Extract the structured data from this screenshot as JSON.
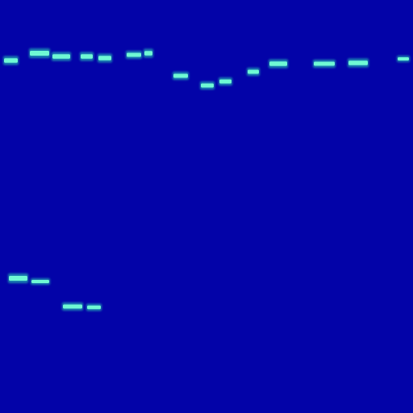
{
  "image": {
    "kind": "spectrogram-like intensity image",
    "background_color": "#0303a8",
    "glow_color": "#2ee6b8",
    "core_color": "#74ffd6"
  },
  "ui": {},
  "chart_data": {
    "type": "heatmap",
    "title": "",
    "xlabel": "",
    "ylabel": "",
    "grid": false,
    "legend": "none"
  }
}
